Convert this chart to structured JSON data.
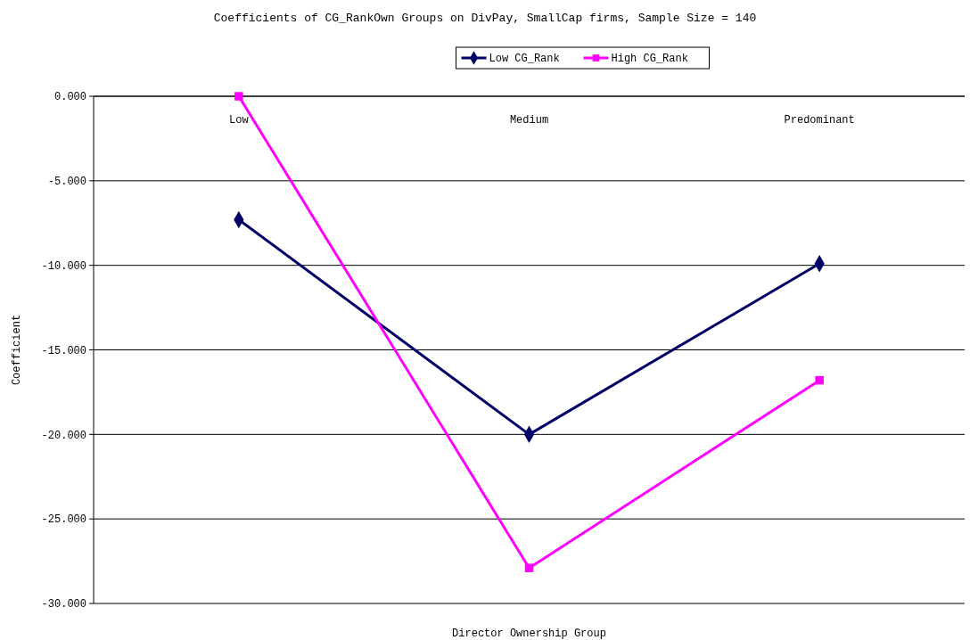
{
  "chart_data": {
    "type": "line",
    "title": "Coefficients of CG_RankOwn Groups on DivPay, SmallCap firms, Sample Size = 140",
    "xlabel": "Director Ownership Group",
    "ylabel": "Coefficient",
    "categories": [
      "Low",
      "Medium",
      "Predominant"
    ],
    "series": [
      {
        "name": "Low CG_Rank",
        "color": "#000066",
        "values": [
          -7.3,
          -20.0,
          -9.9
        ],
        "marker": "diamond"
      },
      {
        "name": "High CG_Rank",
        "color": "#ff00ff",
        "values": [
          0.0,
          -27.9,
          -16.8
        ],
        "marker": "square"
      }
    ],
    "ylim": [
      -30,
      0
    ],
    "yticks": [
      {
        "value": 0,
        "label": "0.000"
      },
      {
        "value": -5,
        "label": "-5.000"
      },
      {
        "value": -10,
        "label": "-10.000"
      },
      {
        "value": -15,
        "label": "-15.000"
      },
      {
        "value": -20,
        "label": "-20.000"
      },
      {
        "value": -25,
        "label": "-25.000"
      },
      {
        "value": -30,
        "label": "-30.000"
      }
    ],
    "grid": "y",
    "legend": "top",
    "line_style": "solid"
  }
}
